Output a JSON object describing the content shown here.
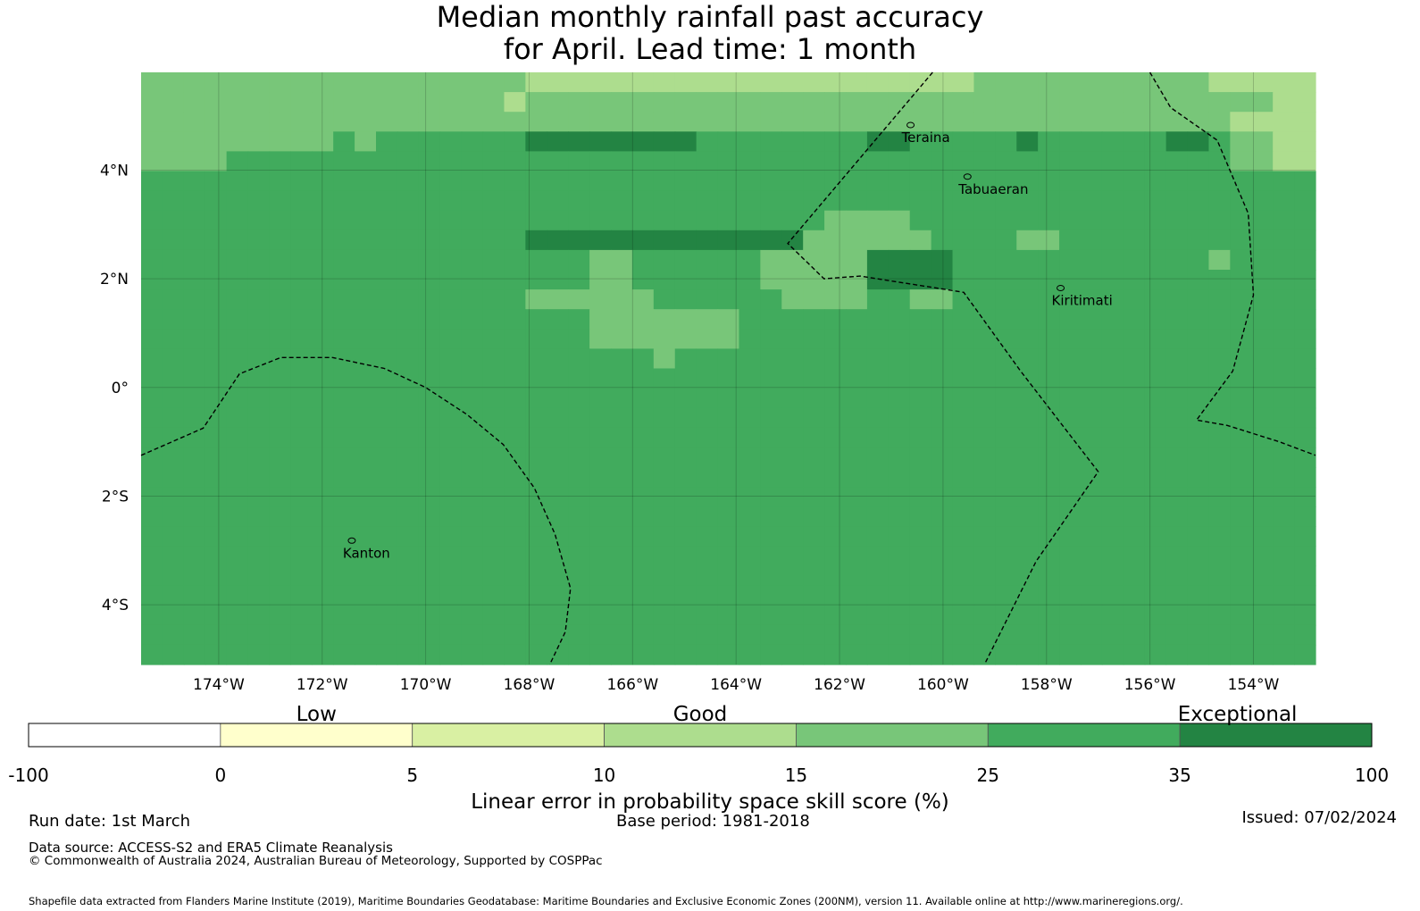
{
  "title": {
    "line1": "Median monthly rainfall past accuracy",
    "line2": "for April. Lead time: 1 month"
  },
  "map": {
    "lon_range": [
      -175.5,
      -152.8
    ],
    "lat_range": [
      -5.1,
      5.8
    ],
    "lon_ticks": [
      {
        "value": -174,
        "label": "174°W"
      },
      {
        "value": -172,
        "label": "172°W"
      },
      {
        "value": -170,
        "label": "170°W"
      },
      {
        "value": -168,
        "label": "168°W"
      },
      {
        "value": -166,
        "label": "166°W"
      },
      {
        "value": -164,
        "label": "164°W"
      },
      {
        "value": -162,
        "label": "162°W"
      },
      {
        "value": -160,
        "label": "160°W"
      },
      {
        "value": -158,
        "label": "158°W"
      },
      {
        "value": -156,
        "label": "156°W"
      },
      {
        "value": -154,
        "label": "154°W"
      }
    ],
    "lat_ticks": [
      {
        "value": 4,
        "label": "4°N"
      },
      {
        "value": 2,
        "label": "2°N"
      },
      {
        "value": 0,
        "label": "0°"
      },
      {
        "value": -2,
        "label": "2°S"
      },
      {
        "value": -4,
        "label": "4°S"
      }
    ],
    "places": [
      {
        "name": "Teraina",
        "lon": -160.8,
        "lat": 4.6
      },
      {
        "name": "Tabuaeran",
        "lon": -159.7,
        "lat": 3.65
      },
      {
        "name": "Kiritimati",
        "lon": -157.9,
        "lat": 1.6
      },
      {
        "name": "Kanton",
        "lon": -171.6,
        "lat": -3.05
      }
    ],
    "eez_boundaries": [
      [
        [
          -160.2,
          5.8
        ],
        [
          -163.0,
          2.65
        ],
        [
          -162.3,
          2.0
        ],
        [
          -161.6,
          2.05
        ],
        [
          -159.6,
          1.75
        ],
        [
          -158.5,
          0.3
        ],
        [
          -157.0,
          -1.55
        ],
        [
          -158.2,
          -3.2
        ],
        [
          -159.2,
          -5.1
        ]
      ],
      [
        [
          -156.0,
          5.8
        ],
        [
          -155.6,
          5.15
        ],
        [
          -154.7,
          4.55
        ],
        [
          -154.1,
          3.2
        ],
        [
          -154.0,
          1.7
        ],
        [
          -154.4,
          0.3
        ],
        [
          -155.1,
          -0.6
        ],
        [
          -154.5,
          -0.7
        ],
        [
          -153.5,
          -1.0
        ],
        [
          -152.8,
          -1.25
        ]
      ],
      [
        [
          -175.5,
          -1.25
        ],
        [
          -174.3,
          -0.75
        ],
        [
          -173.6,
          0.25
        ],
        [
          -172.8,
          0.55
        ],
        [
          -171.8,
          0.55
        ],
        [
          -170.8,
          0.35
        ],
        [
          -170.0,
          0.0
        ],
        [
          -169.2,
          -0.5
        ],
        [
          -168.5,
          -1.05
        ],
        [
          -167.9,
          -1.85
        ],
        [
          -167.5,
          -2.7
        ],
        [
          -167.2,
          -3.7
        ],
        [
          -167.3,
          -4.5
        ],
        [
          -167.6,
          -5.1
        ]
      ]
    ],
    "grid_classes": [
      "4444444444444444443333333333333333333334444444444433333",
      "4444444444444444434444444444444444444444444444444444433",
      "4444444444444444444444444444444444444444444444444443333",
      "4444444445455555556666666655555555665555565555556654433",
      "4444555555555555555555555555555555555555555555555554433",
      "5555555555555555555555555555555555555555555555555555555",
      "5555555555555555555555555555555555555555555555555555555",
      "5555555555555555555555555555555544445555555555555555555",
      "5555555555555555556666666666666444444555544555555555555",
      "5555555555555555555554455555544444666655555555555545555",
      "5555555555555555555554455555544444666655555555555555555",
      "5555555555555555554444445555554444554455555555555555555",
      "5555555555555555555554444444555555555555555555555555555",
      "5555555555555555555554444444555555555555555555555555555",
      "5555555555555555555555554555555555555555555555555555555",
      "5555555555555555555555555555555555555555555555555555555",
      "5555555555555555555555555555555555555555555555555555555",
      "5555555555555555555555555555555555555555555555555555555",
      "5555555555555555555555555555555555555555555555555555555",
      "5555555555555555555555555555555555555555555555555555555",
      "5555555555555555555555555555555555555555555555555555555",
      "5555555555555555555555555555555555555555555555555555555",
      "5555555555555555555555555555555555555555555555555555555",
      "5555555555555555555555555555555555555555555555555555555",
      "5555555555555555555555555555555555555555555555555555555",
      "5555555555555555555555555555555555555555555555555555555",
      "5555555555555555555555555555555555555555555555555555555",
      "5555555555555555555555555555555555555555555555555555555",
      "5555555555555555555555555555555555555555555555555555555",
      "5555555555555555555555555555555555555555555555555555555"
    ]
  },
  "colorbar": {
    "boundaries": [
      "-100",
      "0",
      "5",
      "10",
      "15",
      "25",
      "35",
      "100"
    ],
    "colors": [
      "#ffffff",
      "#ffffcc",
      "#d9f0a3",
      "#addd8e",
      "#78c679",
      "#41ab5d",
      "#238443"
    ],
    "categories": [
      {
        "label": "Low",
        "at": 1.5
      },
      {
        "label": "Good",
        "at": 3.5
      },
      {
        "label": "Exceptional",
        "at": 6.3
      }
    ],
    "title": "Linear error in probability space skill score (%)"
  },
  "footer": {
    "run_date": "Run date: 1st March",
    "base_period": "Base period: 1981-2018",
    "issued": "Issued: 07/02/2024",
    "data_source": "Data source: ACCESS-S2 and ERA5 Climate Reanalysis",
    "copyright": "© Commonwealth of Australia 2024, Australian Bureau of Meteorology, Supported by COSPPac",
    "shapefile": "Shapefile data extracted from Flanders Marine Institute (2019), Maritime Boundaries Geodatabase: Maritime Boundaries and Exclusive Economic Zones (200NM), version 11. Available online at http://www.marineregions.org/."
  }
}
